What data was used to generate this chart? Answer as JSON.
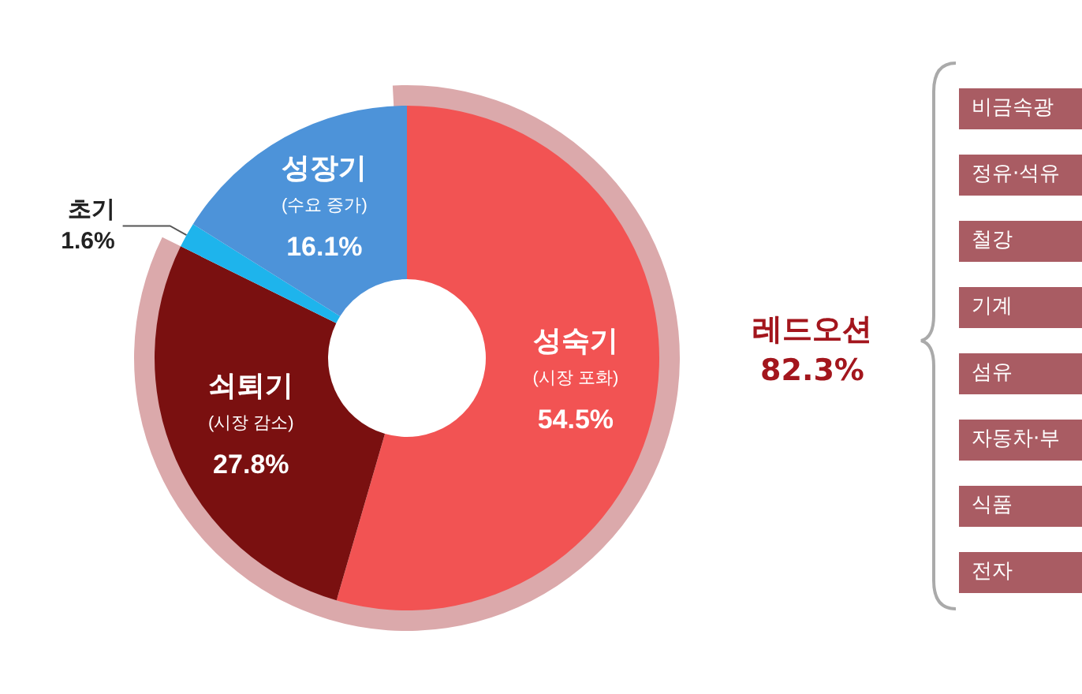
{
  "chart_data": {
    "type": "donut",
    "categories": [
      "성숙기\n(시장 포화)",
      "쇠퇴기\n(시장 감소)",
      "초기",
      "성장기\n(수요 증가)"
    ],
    "values": [
      54.5,
      27.8,
      1.6,
      16.1
    ],
    "value_labels": [
      "54.5%",
      "27.8%",
      "1.6%",
      "16.1%"
    ],
    "colors": [
      "#f25353",
      "#7a1010",
      "#1eb4ec",
      "#4d93d9"
    ],
    "annotations": [
      "레드오션\n82.3%",
      "비금속광",
      "정유·석유",
      "철강",
      "기계",
      "섬유",
      "자동차·부",
      "식품",
      "전자"
    ],
    "legend": false
  }
}
